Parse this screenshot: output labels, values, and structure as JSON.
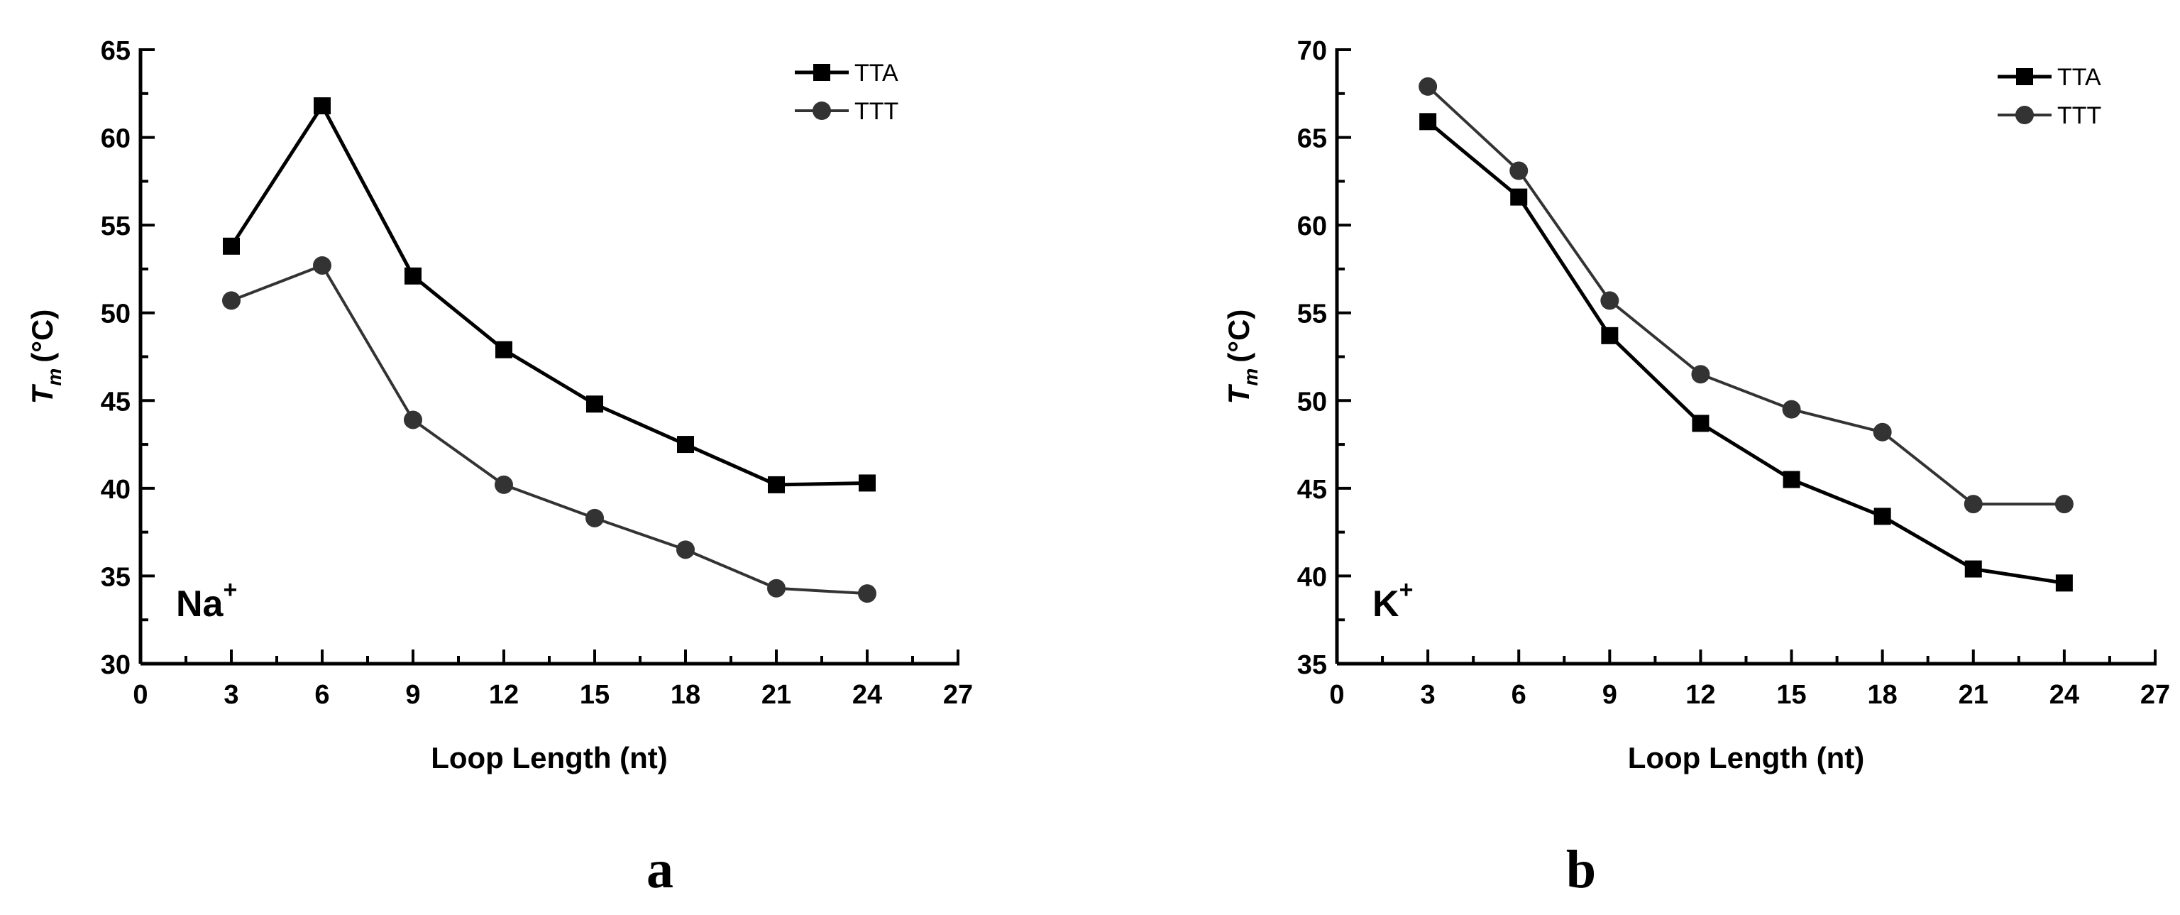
{
  "chart_data": [
    {
      "type": "line",
      "panel_label": "a",
      "ion": "Na",
      "ion_charge": "+",
      "xlabel": "Loop Length (nt)",
      "ylabel_symbol": "T",
      "ylabel_sub": "m",
      "ylabel_unit": "(°C)",
      "xlim": [
        0,
        27
      ],
      "ylim": [
        30,
        65
      ],
      "xticks": [
        0,
        3,
        6,
        9,
        12,
        15,
        18,
        21,
        24,
        27
      ],
      "yticks": [
        30,
        35,
        40,
        45,
        50,
        55,
        60,
        65
      ],
      "legend_position": "top-right",
      "x": [
        3,
        6,
        9,
        12,
        15,
        18,
        21,
        24
      ],
      "series": [
        {
          "name": "TTA",
          "marker": "square",
          "color": "#000000",
          "values": [
            53.8,
            61.8,
            52.1,
            47.9,
            44.8,
            42.5,
            40.2,
            40.3
          ]
        },
        {
          "name": "TTT",
          "marker": "circle",
          "color": "#333333",
          "values": [
            50.7,
            52.7,
            43.9,
            40.2,
            38.3,
            36.5,
            34.3,
            34.0
          ]
        }
      ]
    },
    {
      "type": "line",
      "panel_label": "b",
      "ion": "K",
      "ion_charge": "+",
      "xlabel": "Loop Length (nt)",
      "ylabel_symbol": "T",
      "ylabel_sub": "m",
      "ylabel_unit": "(°C)",
      "xlim": [
        0,
        27
      ],
      "ylim": [
        35,
        70
      ],
      "xticks": [
        0,
        3,
        6,
        9,
        12,
        15,
        18,
        21,
        24,
        27
      ],
      "yticks": [
        35,
        40,
        45,
        50,
        55,
        60,
        65,
        70
      ],
      "legend_position": "top-right",
      "x": [
        3,
        6,
        9,
        12,
        15,
        18,
        21,
        24
      ],
      "series": [
        {
          "name": "TTA",
          "marker": "square",
          "color": "#000000",
          "values": [
            65.9,
            61.6,
            53.7,
            48.7,
            45.5,
            43.4,
            40.4,
            39.6
          ]
        },
        {
          "name": "TTT",
          "marker": "circle",
          "color": "#333333",
          "values": [
            67.9,
            63.1,
            55.7,
            51.5,
            49.5,
            48.2,
            44.1,
            44.1
          ]
        }
      ]
    }
  ]
}
